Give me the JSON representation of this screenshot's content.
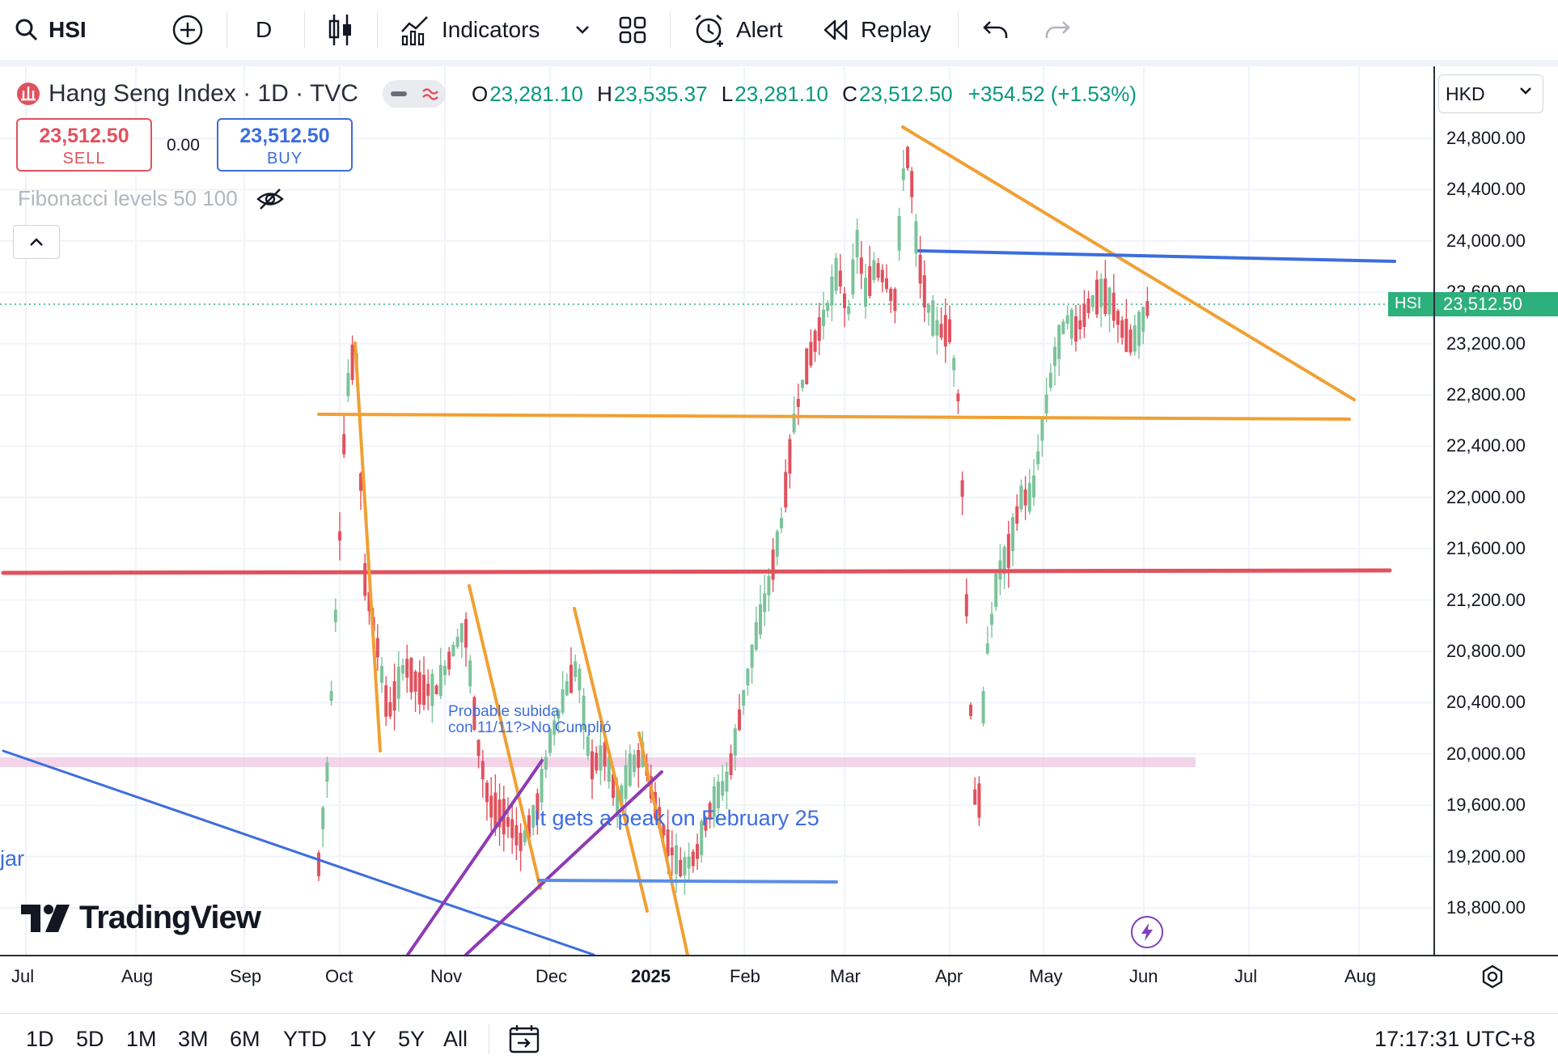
{
  "toolbar": {
    "symbol": "HSI",
    "interval": "D",
    "indicators_label": "Indicators",
    "alert_label": "Alert",
    "replay_label": "Replay"
  },
  "legend": {
    "title": "Hang Seng Index · 1D · TVC",
    "o_key": "O",
    "o_val": "23,281.10",
    "h_key": "H",
    "h_val": "23,535.37",
    "l_key": "L",
    "l_val": "23,281.10",
    "c_key": "C",
    "c_val": "23,512.50",
    "change": "+354.52 (+1.53%)"
  },
  "trade": {
    "sell_price": "23,512.50",
    "sell_label": "SELL",
    "spread": "0.00",
    "buy_price": "23,512.50",
    "buy_label": "BUY"
  },
  "fib_label": "Fibonacci levels 50 100",
  "currency": "HKD",
  "price_scale": {
    "labels": [
      "24,800.00",
      "24,400.00",
      "24,000.00",
      "23,600.00",
      "23,200.00",
      "22,800.00",
      "22,400.00",
      "22,000.00",
      "21,600.00",
      "21,200.00",
      "20,800.00",
      "20,400.00",
      "20,000.00",
      "19,600.00",
      "19,200.00",
      "18,800.00"
    ],
    "current_symbol": "HSI",
    "current_price": "23,512.50"
  },
  "time_scale": {
    "labels": [
      "Jul",
      "Aug",
      "Sep",
      "Oct",
      "Nov",
      "Dec",
      "2025",
      "Feb",
      "Mar",
      "Apr",
      "May",
      "Jun",
      "Jul",
      "Aug"
    ]
  },
  "annotations": {
    "note1_line1": "Probable subida",
    "note1_line2": "con 11/11?>No Cumplió",
    "note2": "It gets a peak on February 25",
    "note3": "jar"
  },
  "brand": "TradingView",
  "ranges": [
    "1D",
    "5D",
    "1M",
    "3M",
    "6M",
    "YTD",
    "1Y",
    "5Y",
    "All"
  ],
  "clock": "17:17:31 UTC+8",
  "colors": {
    "up": "#7cc39b",
    "down": "#e0525e",
    "orange": "#f0a033",
    "blue": "#3d6dde",
    "red_line": "#e0525e",
    "purple": "#8e3bb4",
    "pink_band": "#efc6e1"
  }
}
